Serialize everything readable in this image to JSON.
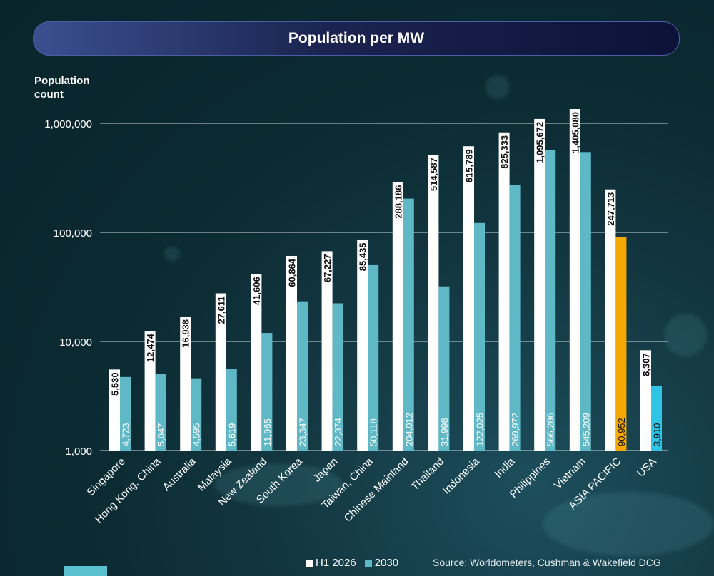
{
  "title": "Population per MW",
  "colors": {
    "h1_2026": "#ffffff",
    "y2030": "#5fb8c6",
    "asia_pacific_2030": "#f5a800",
    "usa_2030": "#2ec5e6",
    "gridline": "#c9d6d9"
  },
  "legend": {
    "h1_label": "H1 2026",
    "y2030_label": "2030"
  },
  "source": "Source: Worldometers, Cushman & Wakefield DCG",
  "chart_data": {
    "type": "bar",
    "title": "Population per MW",
    "ylabel": "Population count",
    "xlabel": "",
    "y_scale": "log",
    "ylim": [
      1000,
      1000000
    ],
    "yticks": [
      "1,000",
      "10,000",
      "100,000",
      "1,000,000"
    ],
    "legend_position": "bottom",
    "grid": true,
    "categories": [
      "Singapore",
      "Hong Kong, China",
      "Australia",
      "Malaysia",
      "New Zealand",
      "South Korea",
      "Japan",
      "Taiwan, China",
      "Chinese Mainland",
      "Thailand",
      "Indonesia",
      "India",
      "Philippines",
      "Vietnam",
      "ASIA PACIFIC",
      "USA"
    ],
    "series": [
      {
        "name": "H1 2026",
        "values": [
          5530,
          12474,
          16938,
          27611,
          41606,
          60864,
          67227,
          85435,
          288186,
          514587,
          615789,
          825333,
          1095672,
          1405080,
          247713,
          8307
        ],
        "labels": [
          "5,530",
          "12,474",
          "16,938",
          "27,611",
          "41,606",
          "60,864",
          "67,227",
          "85,435",
          "288,186",
          "514,587",
          "615,789",
          "825,333",
          "1,095,672",
          "1,405,080",
          "247,713",
          "8,307"
        ]
      },
      {
        "name": "2030",
        "values": [
          4723,
          5047,
          4595,
          5619,
          11965,
          23347,
          22374,
          50118,
          204012,
          31998,
          122025,
          269972,
          566286,
          545209,
          90952,
          3910
        ],
        "labels": [
          "4,723",
          "5,047",
          "4,595",
          "5,619",
          "11,965",
          "23,347",
          "22,374",
          "50,118",
          "204,012",
          "31,998",
          "122,025",
          "269,972",
          "566,286",
          "545,209",
          "90,952",
          "3,910"
        ]
      }
    ]
  }
}
